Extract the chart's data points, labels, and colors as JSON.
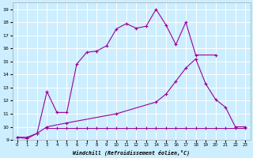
{
  "xlabel": "Windchill (Refroidissement éolien,°C)",
  "xlim": [
    -0.5,
    23.5
  ],
  "ylim": [
    9,
    19.5
  ],
  "xticks": [
    0,
    1,
    2,
    3,
    4,
    5,
    6,
    7,
    8,
    9,
    10,
    11,
    12,
    13,
    14,
    15,
    16,
    17,
    18,
    19,
    20,
    21,
    22,
    23
  ],
  "yticks": [
    9,
    10,
    11,
    12,
    13,
    14,
    15,
    16,
    17,
    18,
    19
  ],
  "background_color": "#cceeff",
  "grid_color": "#ffffff",
  "line_color": "#990099",
  "line1_x": [
    0,
    1,
    2,
    3,
    4,
    5,
    6,
    7,
    8,
    9,
    10,
    11,
    12,
    13,
    14,
    15,
    16,
    17,
    18,
    20
  ],
  "line1_y": [
    9.2,
    9.1,
    9.5,
    12.7,
    11.1,
    11.1,
    14.8,
    15.7,
    15.8,
    16.2,
    17.5,
    17.9,
    17.55,
    17.7,
    19.0,
    17.8,
    16.3,
    18.0,
    15.5,
    15.5
  ],
  "line2_x": [
    0,
    1,
    2,
    3,
    5,
    10,
    14,
    15,
    16,
    17,
    18,
    19,
    20,
    21,
    22,
    23
  ],
  "line2_y": [
    9.2,
    9.2,
    9.5,
    10.0,
    10.3,
    11.0,
    11.9,
    12.5,
    13.5,
    14.5,
    15.2,
    13.3,
    12.1,
    11.5,
    10.0,
    10.0
  ],
  "line3_x": [
    3,
    4,
    5,
    6,
    7,
    8,
    9,
    10,
    11,
    12,
    13,
    14,
    15,
    16,
    17,
    18,
    19,
    20,
    21,
    22,
    23
  ],
  "line3_y": [
    9.9,
    9.9,
    9.9,
    9.9,
    9.9,
    9.9,
    9.9,
    9.9,
    9.9,
    9.9,
    9.9,
    9.9,
    9.9,
    9.9,
    9.9,
    9.9,
    9.9,
    9.9,
    9.9,
    9.9,
    9.9
  ]
}
